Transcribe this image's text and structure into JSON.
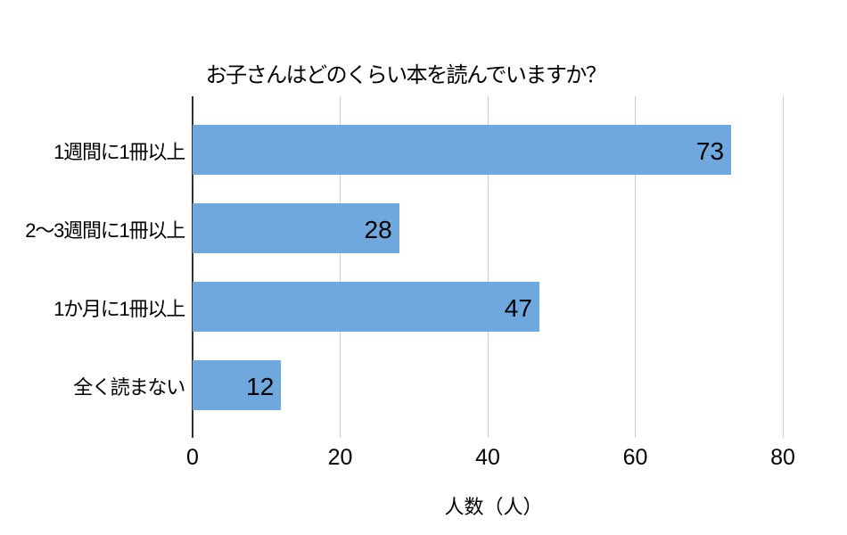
{
  "chart_data": {
    "type": "bar",
    "orientation": "horizontal",
    "title": "お子さんはどのくらい本を読んでいますか？",
    "categories": [
      "1週間に1冊以上",
      "2～3週間に1冊以上",
      "1か月に1冊以上",
      "全く読まない"
    ],
    "values": [
      73,
      28,
      47,
      12
    ],
    "xlabel": "人数（人）",
    "xticks": [
      0,
      20,
      40,
      60,
      80
    ],
    "xlim": [
      0,
      80
    ],
    "grid": true,
    "legend": false,
    "value_label_position": "inside-end",
    "bar_color": "#6fa8dc",
    "gridline_color": "#cccccc",
    "axis_line_color": "#333333",
    "text_color": "#000000"
  }
}
